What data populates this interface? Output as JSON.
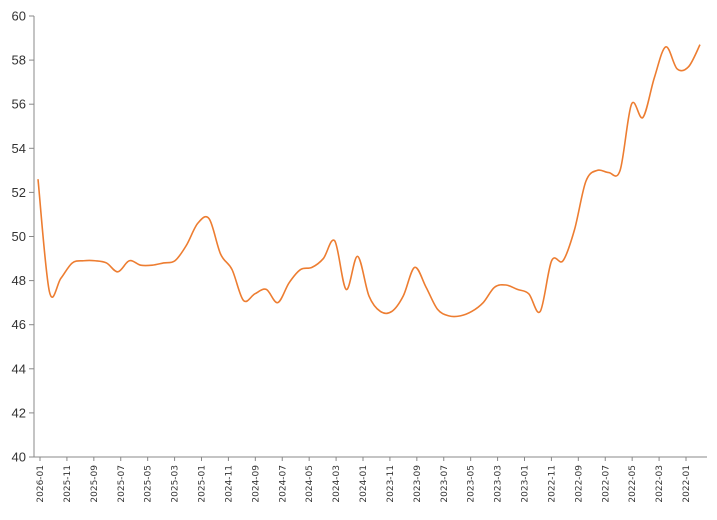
{
  "chart_data": {
    "type": "line",
    "title": "",
    "xlabel": "",
    "ylabel": "",
    "ylim": [
      40,
      60
    ],
    "y_ticks": [
      40,
      42,
      44,
      46,
      48,
      50,
      52,
      54,
      56,
      58,
      60
    ],
    "x_tick_labels": [
      "2026-01",
      "2025-11",
      "2025-09",
      "2025-07",
      "2025-05",
      "2025-03",
      "2025-01",
      "2024-11",
      "2024-09",
      "2024-07",
      "2024-05",
      "2024-03",
      "2024-01",
      "2023-11",
      "2023-09",
      "2023-07",
      "2023-05",
      "2023-03",
      "2023-01",
      "2022-11",
      "2022-09",
      "2022-07",
      "2022-05",
      "2022-03",
      "2022-01"
    ],
    "grid": false,
    "legend": "none",
    "line_color": "#ed7d31",
    "axis_color": "#888888",
    "series": [
      {
        "values": [
          52.6,
          47.5,
          48.1,
          48.8,
          48.9,
          48.9,
          48.8,
          48.4,
          48.9,
          48.7,
          48.7,
          48.8,
          48.9,
          49.6,
          50.6,
          50.8,
          49.2,
          48.5,
          47.1,
          47.4,
          47.6,
          47.0,
          47.9,
          48.5,
          48.6,
          49.0,
          49.8,
          47.6,
          49.1,
          47.3,
          46.6,
          46.6,
          47.3,
          48.6,
          47.7,
          46.7,
          46.4,
          46.4,
          46.6,
          47.0,
          47.7,
          47.8,
          47.6,
          47.4,
          46.6,
          48.9,
          48.9,
          50.3,
          52.5,
          53.0,
          52.9,
          53.0,
          56.0,
          55.4,
          57.2,
          58.6,
          57.6,
          57.7,
          58.7
        ]
      }
    ]
  }
}
